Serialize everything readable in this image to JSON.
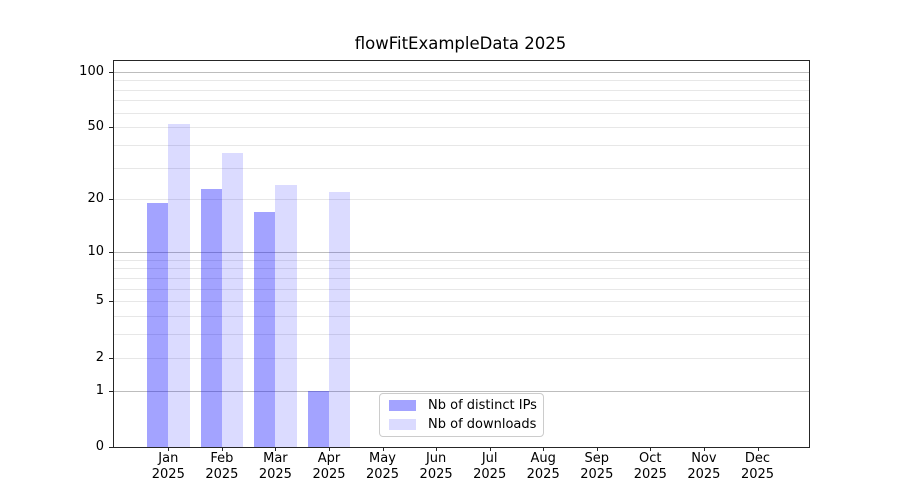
{
  "title": "flowFitExampleData 2025",
  "colors": {
    "bar_base": "#0000ff",
    "distinct_ips_rendered": "#a3a3ff",
    "downloads_rendered": "#dbdbff",
    "major_grid": "#bdbdbd",
    "minor_grid": "#e7e7e7",
    "axis": "#262626",
    "text": "#000000",
    "legend_border": "#cccccc"
  },
  "legend": {
    "items": [
      {
        "label": "Nb of distinct IPs"
      },
      {
        "label": "Nb of downloads"
      }
    ]
  },
  "chart_data": {
    "type": "bar",
    "title": "flowFitExampleData 2025",
    "categories": [
      "Jan 2025",
      "Feb 2025",
      "Mar 2025",
      "Apr 2025",
      "May 2025",
      "Jun 2025",
      "Jul 2025",
      "Aug 2025",
      "Sep 2025",
      "Oct 2025",
      "Nov 2025",
      "Dec 2025"
    ],
    "series": [
      {
        "name": "Nb of distinct IPs",
        "color": "#a3a3ff",
        "base_color": "#0000ff",
        "opacity": 0.36,
        "values": [
          19,
          23,
          17,
          1,
          0,
          0,
          0,
          0,
          0,
          0,
          0,
          0
        ]
      },
      {
        "name": "Nb of downloads",
        "color": "#dbdbff",
        "base_color": "#0000ff",
        "opacity": 0.14,
        "values": [
          52,
          36,
          24,
          22,
          0,
          0,
          0,
          0,
          0,
          0,
          0,
          0
        ]
      }
    ],
    "xlabel": "",
    "ylabel": "",
    "yscale": "log1p",
    "ylim": [
      0,
      114
    ],
    "yticks": [
      0,
      1,
      2,
      5,
      10,
      20,
      50,
      100
    ],
    "grid_major": [
      1,
      10,
      100
    ],
    "grid_minor": [
      2,
      3,
      4,
      5,
      6,
      7,
      8,
      9,
      20,
      30,
      40,
      50,
      60,
      70,
      80,
      90
    ],
    "grid": "both",
    "legend_position": "lower center",
    "bar_width_fraction": 0.4
  }
}
